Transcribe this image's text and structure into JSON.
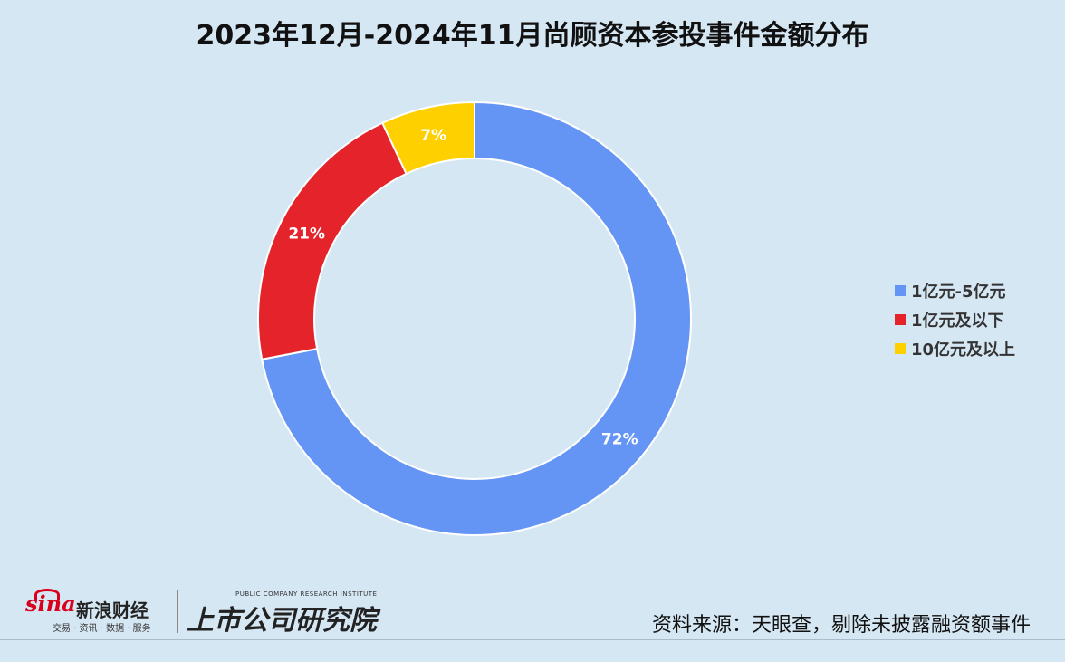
{
  "chart_data": {
    "type": "pie",
    "title": "2023年12月-2024年11月尚顾资本参投事件金额分布",
    "slices": [
      {
        "label": "1亿元-5亿元",
        "value": 72,
        "display": "72%",
        "color": "#6495f5"
      },
      {
        "label": "1亿元及以下",
        "value": 21,
        "display": "21%",
        "color": "#e4242a"
      },
      {
        "label": "10亿元及以上",
        "value": 7,
        "display": "7%",
        "color": "#ffd000"
      }
    ],
    "donut": true,
    "legend_position": "right"
  },
  "footer": {
    "source": "资料来源：天眼查，剔除未披露融资额事件",
    "brand_sina_word": "sina",
    "brand_sina_cn": "新浪财经",
    "brand_sina_sub": "交易 · 资讯 · 数据 · 服务",
    "brand_institute_en": "PUBLIC COMPANY RESEARCH INSTITUTE",
    "brand_institute_cn": "上市公司研究院"
  }
}
